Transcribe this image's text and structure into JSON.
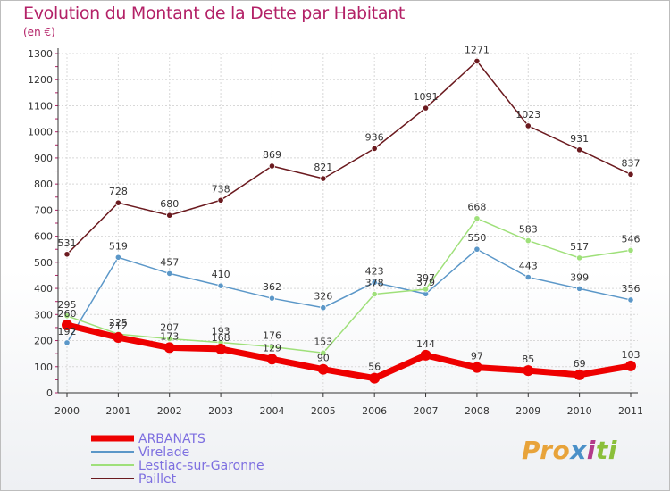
{
  "chart_data": {
    "type": "line",
    "title": "Evolution du Montant de la Dette par Habitant",
    "unit_label": "(en €)",
    "xlabel": "",
    "ylabel": "(en €)",
    "ylim": [
      0,
      1300
    ],
    "yticks": [
      0,
      100,
      200,
      300,
      400,
      500,
      600,
      700,
      800,
      900,
      1000,
      1100,
      1200,
      1300
    ],
    "categories": [
      "2000",
      "2001",
      "2002",
      "2003",
      "2004",
      "2005",
      "2006",
      "2007",
      "2008",
      "2009",
      "2010",
      "2011"
    ],
    "grid": true,
    "legend_position": "bottom-left",
    "series": [
      {
        "name": "Paillet",
        "color": "#6b1a1f",
        "values": [
          531,
          728,
          680,
          738,
          869,
          821,
          936,
          1091,
          1271,
          1023,
          931,
          837
        ]
      },
      {
        "name": "Virelade",
        "color": "#5b97c8",
        "values": [
          192,
          519,
          457,
          410,
          362,
          326,
          423,
          379,
          550,
          443,
          399,
          356
        ]
      },
      {
        "name": "Lestiac-sur-Garonne",
        "color": "#9fe07a",
        "values": [
          295,
          225,
          207,
          193,
          176,
          153,
          378,
          397,
          668,
          583,
          517,
          546
        ]
      },
      {
        "name": "ARBANATS",
        "color": "#ee0000",
        "values": [
          260,
          212,
          173,
          168,
          129,
          90,
          56,
          144,
          97,
          85,
          69,
          103
        ]
      }
    ],
    "legend": [
      "ARBANATS",
      "Virelade",
      "Lestiac-sur-Garonne",
      "Paillet"
    ]
  },
  "brand": {
    "logo_parts": [
      "Pro",
      "x",
      "i",
      "ti"
    ]
  }
}
